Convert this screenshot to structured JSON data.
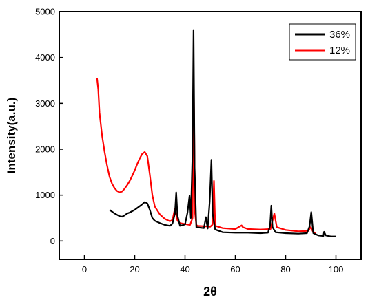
{
  "chart_data": {
    "type": "line",
    "xlabel": "2θ",
    "ylabel": "Intensity(a.u.)",
    "xlim": [
      -10,
      110
    ],
    "ylim": [
      -400,
      5000
    ],
    "x_ticks": [
      0,
      20,
      40,
      60,
      80,
      100
    ],
    "y_ticks": [
      0,
      1000,
      2000,
      3000,
      4000,
      5000
    ],
    "grid": false,
    "legend": "top-right",
    "series": [
      {
        "name": "36%",
        "color": "#000000",
        "x": [
          10,
          11,
          12,
          13,
          14,
          15,
          16,
          17,
          18,
          19,
          20,
          21,
          22,
          23,
          24,
          25,
          26,
          27,
          28,
          30,
          32,
          34,
          35,
          36,
          36.5,
          37,
          38,
          40,
          41,
          41.8,
          42.3,
          43,
          43.4,
          43.8,
          44.5,
          46,
          47.5,
          48.3,
          49,
          49.8,
          50.5,
          51,
          52,
          55,
          60,
          65,
          70,
          73,
          73.8,
          74.3,
          74.8,
          76,
          80,
          85,
          88.5,
          89.5,
          90.2,
          91,
          93,
          95,
          95.3,
          96,
          98,
          100
        ],
        "values": [
          680,
          640,
          600,
          570,
          540,
          530,
          560,
          600,
          620,
          650,
          680,
          720,
          760,
          800,
          850,
          820,
          680,
          500,
          440,
          390,
          350,
          330,
          380,
          600,
          1060,
          550,
          330,
          360,
          620,
          990,
          500,
          1900,
          4600,
          1600,
          300,
          290,
          280,
          520,
          270,
          860,
          1770,
          600,
          250,
          190,
          180,
          180,
          170,
          180,
          330,
          770,
          300,
          190,
          170,
          160,
          170,
          320,
          630,
          170,
          120,
          110,
          200,
          120,
          100,
          100
        ]
      },
      {
        "name": "12%",
        "color": "#ff0000",
        "x": [
          5,
          5.5,
          6,
          7,
          8,
          9,
          10,
          11,
          12,
          13,
          14,
          15,
          16,
          17,
          18,
          19,
          20,
          21,
          22,
          23,
          24,
          25,
          26,
          27,
          28,
          30,
          32,
          34,
          35,
          36,
          37,
          38,
          40,
          42,
          43,
          43.5,
          44,
          44.5,
          45,
          48,
          50,
          51,
          51.5,
          52,
          55,
          60,
          62.5,
          63,
          65,
          70,
          74,
          75.5,
          76.5,
          80,
          85,
          89,
          90,
          91,
          92
        ],
        "values": [
          3550,
          3300,
          2800,
          2300,
          1950,
          1650,
          1400,
          1250,
          1150,
          1090,
          1060,
          1080,
          1140,
          1220,
          1310,
          1420,
          1540,
          1680,
          1800,
          1900,
          1940,
          1850,
          1450,
          1000,
          750,
          580,
          480,
          430,
          460,
          710,
          440,
          390,
          370,
          350,
          500,
          3270,
          600,
          350,
          330,
          320,
          310,
          360,
          1310,
          330,
          280,
          260,
          340,
          300,
          260,
          250,
          260,
          600,
          300,
          240,
          210,
          220,
          300,
          190,
          180
        ]
      }
    ]
  }
}
